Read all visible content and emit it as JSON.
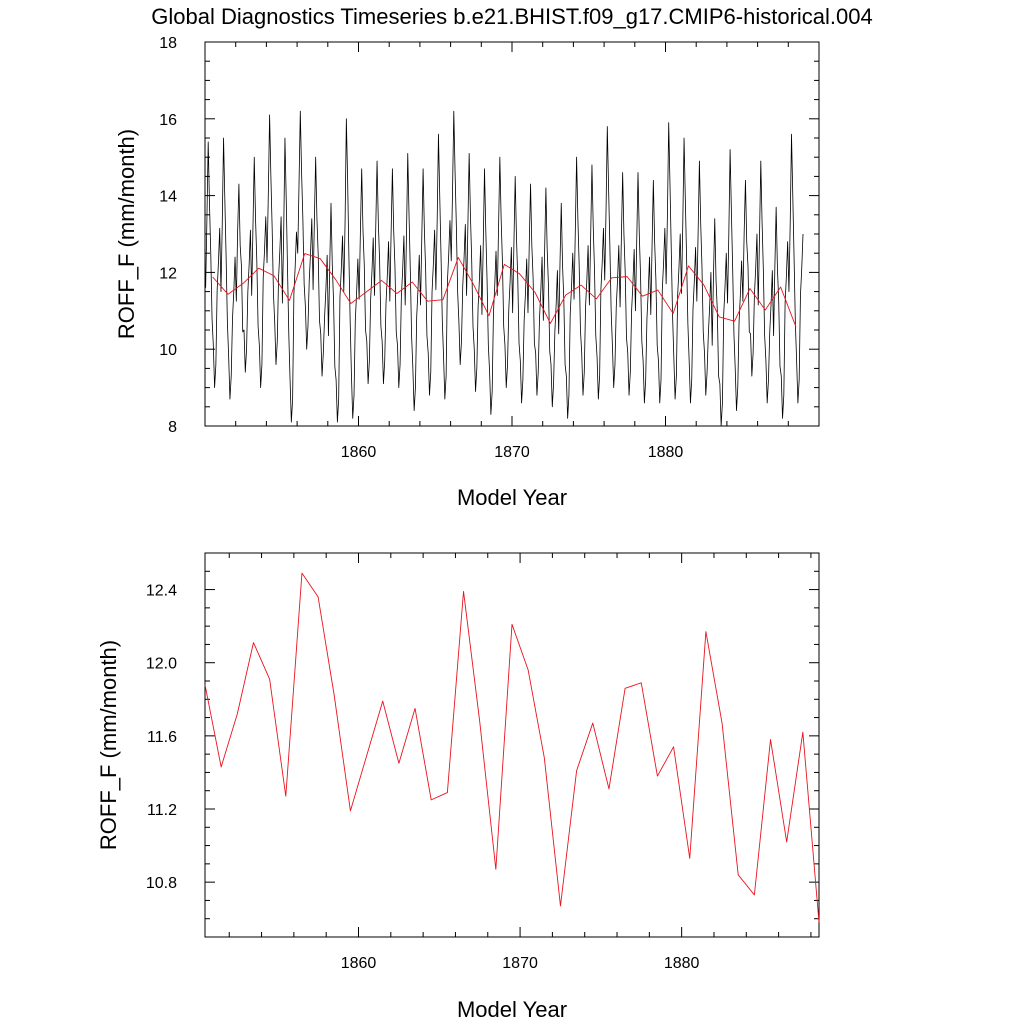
{
  "title": "Global Diagnostics Timeseries b.e21.BHIST.f09_g17.CMIP6-historical.004",
  "chart_data": [
    {
      "type": "line",
      "xlabel": "Model Year",
      "ylabel": "ROFF_F (mm/month)",
      "xlim": [
        1850,
        1890
      ],
      "ylim": [
        8,
        18
      ],
      "xticks": [
        "1860",
        "1870",
        "1880"
      ],
      "yticks": [
        "8",
        "10",
        "12",
        "14",
        "16",
        "18"
      ],
      "grid": false,
      "series": [
        {
          "color": "#000000",
          "sampling": "monthly",
          "annual_peaks": [
            15.4,
            15.5,
            14.3,
            15.0,
            16.1,
            15.5,
            16.2,
            15.0,
            13.8,
            16.0,
            14.7,
            14.9,
            14.7,
            15.1,
            14.7,
            15.6,
            16.2,
            15.1,
            14.7,
            15.0,
            14.5,
            14.3,
            14.2,
            13.8,
            15.0,
            14.8,
            15.8,
            14.6,
            14.6,
            14.4,
            15.9,
            15.5,
            14.9,
            13.4,
            15.2,
            14.4,
            14.9,
            13.7,
            15.6
          ],
          "annual_troughs": [
            9.0,
            8.7,
            9.4,
            9.0,
            9.6,
            8.1,
            10.0,
            9.3,
            8.1,
            8.2,
            9.1,
            9.1,
            9.0,
            8.4,
            8.8,
            8.7,
            9.6,
            8.9,
            8.3,
            9.0,
            8.6,
            8.8,
            8.5,
            8.2,
            8.8,
            8.7,
            9.0,
            8.8,
            8.6,
            8.6,
            8.7,
            8.6,
            8.8,
            8.0,
            8.4,
            9.3,
            8.6,
            8.2,
            8.6
          ]
        },
        {
          "color": "#e8141e",
          "sampling": "annual mean",
          "x": [
            1850.5,
            1851.5,
            1852.5,
            1853.5,
            1854.5,
            1855.5,
            1856.5,
            1857.5,
            1858.5,
            1859.5,
            1860.5,
            1861.5,
            1862.5,
            1863.5,
            1864.5,
            1865.5,
            1866.5,
            1867.5,
            1868.5,
            1869.5,
            1870.5,
            1871.5,
            1872.5,
            1873.5,
            1874.5,
            1875.5,
            1876.5,
            1877.5,
            1878.5,
            1879.5,
            1880.5,
            1881.5,
            1882.5,
            1883.5,
            1884.5,
            1885.5,
            1886.5,
            1887.5,
            1888.5
          ],
          "y": [
            11.88,
            11.43,
            11.72,
            12.11,
            11.91,
            11.27,
            12.49,
            12.36,
            11.82,
            11.19,
            11.49,
            11.79,
            11.45,
            11.75,
            11.25,
            11.29,
            12.39,
            11.68,
            10.87,
            12.21,
            11.96,
            11.48,
            10.67,
            11.41,
            11.67,
            11.31,
            11.86,
            11.89,
            11.38,
            11.54,
            10.93,
            12.17,
            11.67,
            10.84,
            10.73,
            11.58,
            11.02,
            11.62,
            10.58
          ]
        }
      ]
    },
    {
      "type": "line",
      "xlabel": "Model Year",
      "ylabel": "ROFF_F (mm/month)",
      "xlim": [
        1850.5,
        1888.5
      ],
      "ylim": [
        10.5,
        12.6
      ],
      "xticks": [
        "1860",
        "1870",
        "1880"
      ],
      "yticks": [
        "10.8",
        "11.2",
        "11.6",
        "12.0",
        "12.4"
      ],
      "grid": false,
      "series": [
        {
          "color": "#e8141e",
          "sampling": "annual mean",
          "x": [
            1850.5,
            1851.5,
            1852.5,
            1853.5,
            1854.5,
            1855.5,
            1856.5,
            1857.5,
            1858.5,
            1859.5,
            1860.5,
            1861.5,
            1862.5,
            1863.5,
            1864.5,
            1865.5,
            1866.5,
            1867.5,
            1868.5,
            1869.5,
            1870.5,
            1871.5,
            1872.5,
            1873.5,
            1874.5,
            1875.5,
            1876.5,
            1877.5,
            1878.5,
            1879.5,
            1880.5,
            1881.5,
            1882.5,
            1883.5,
            1884.5,
            1885.5,
            1886.5,
            1887.5,
            1888.5
          ],
          "y": [
            11.88,
            11.43,
            11.72,
            12.11,
            11.91,
            11.27,
            12.49,
            12.36,
            11.82,
            11.19,
            11.49,
            11.79,
            11.45,
            11.75,
            11.25,
            11.29,
            12.39,
            11.68,
            10.87,
            12.21,
            11.96,
            11.48,
            10.67,
            11.41,
            11.67,
            11.31,
            11.86,
            11.89,
            11.38,
            11.54,
            10.93,
            12.17,
            11.67,
            10.84,
            10.73,
            11.58,
            11.02,
            11.62,
            10.58
          ]
        }
      ]
    }
  ]
}
